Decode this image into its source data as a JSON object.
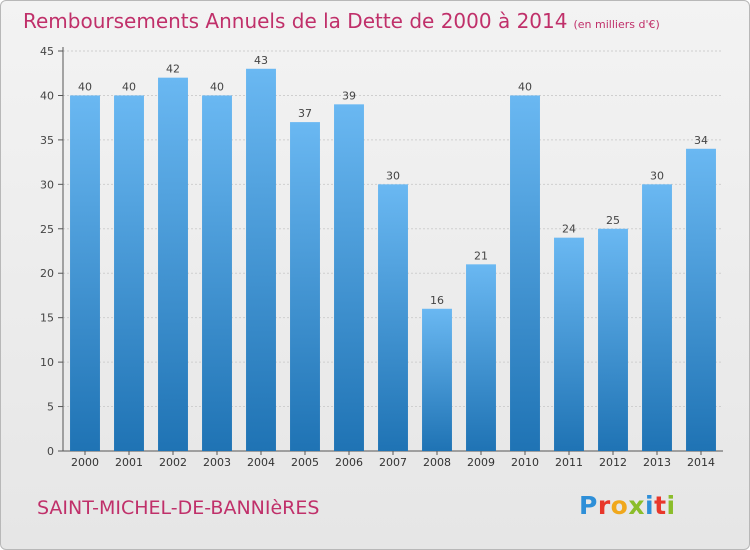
{
  "title": "Remboursements Annuels de la Dette de 2000 à 2014",
  "subtitle": "(en milliers d'€)",
  "commune": "SAINT-MICHEL-DE-BANNIèRES",
  "logo": {
    "text": "Proxiti",
    "letter_colors": [
      "#2e8fd8",
      "#e8372b",
      "#f0a81c",
      "#8bbd2a",
      "#2e8fd8",
      "#e8372b",
      "#8bbd2a"
    ]
  },
  "colors": {
    "bar_light": "#6ab8f2",
    "bar_dark": "#1f73b4",
    "title": "#c0306a",
    "grid": "#cfcfcf"
  },
  "chart_data": {
    "type": "bar",
    "categories": [
      "2000",
      "2001",
      "2002",
      "2003",
      "2004",
      "2005",
      "2006",
      "2007",
      "2008",
      "2009",
      "2010",
      "2011",
      "2012",
      "2013",
      "2014"
    ],
    "values": [
      40,
      40,
      42,
      40,
      43,
      37,
      39,
      30,
      16,
      21,
      40,
      24,
      25,
      30,
      34
    ],
    "yticks": [
      0,
      5,
      10,
      15,
      20,
      25,
      30,
      35,
      40,
      45
    ],
    "ylim": [
      0,
      45
    ],
    "grid": true,
    "title": "Remboursements Annuels de la Dette de 2000 à 2014",
    "subtitle": "(en milliers d'€)"
  }
}
